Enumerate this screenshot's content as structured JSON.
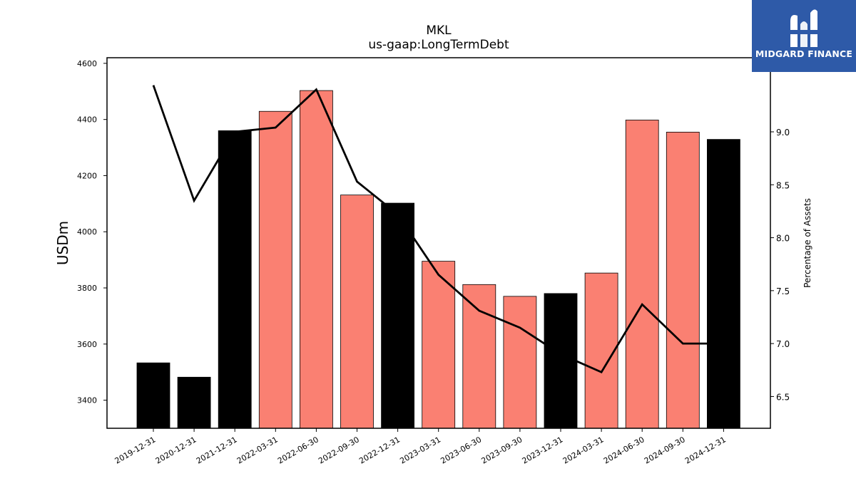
{
  "chart_data": {
    "type": "bar",
    "title": "MKL",
    "subtitle": "us-gaap:LongTermDebt",
    "ylabel": "USDm",
    "y2label": "Percentage of Assets",
    "categories": [
      "2019-12-31",
      "2020-12-31",
      "2021-12-31",
      "2022-03-31",
      "2022-06-30",
      "2022-09-30",
      "2022-12-31",
      "2023-03-31",
      "2023-06-30",
      "2023-09-30",
      "2023-12-31",
      "2024-03-31",
      "2024-06-30",
      "2024-09-30",
      "2024-12-31"
    ],
    "values": [
      3533,
      3482,
      4360,
      4429,
      4503,
      4131,
      4102,
      3895,
      3812,
      3770,
      3780,
      3853,
      4398,
      4355,
      4329
    ],
    "bar_colors": [
      "#000000",
      "#000000",
      "#000000",
      "#fa8072",
      "#fa8072",
      "#fa8072",
      "#000000",
      "#fa8072",
      "#fa8072",
      "#fa8072",
      "#000000",
      "#fa8072",
      "#fa8072",
      "#fa8072",
      "#000000"
    ],
    "line_series": {
      "name": "Percentage of Assets",
      "values": [
        9.44,
        8.35,
        9.0,
        9.04,
        9.4,
        8.53,
        8.22,
        7.65,
        7.31,
        7.15,
        6.9,
        6.73,
        7.37,
        7.0,
        7.0
      ],
      "color": "#000000"
    },
    "ylim": [
      3300,
      4620
    ],
    "y2lim": [
      6.2,
      9.7
    ],
    "yticks": [
      3400,
      3600,
      3800,
      4000,
      4200,
      4400,
      4600
    ],
    "y2ticks": [
      "6.5",
      "7.0",
      "7.5",
      "8.0",
      "8.5",
      "9.0"
    ],
    "grid": false
  },
  "logo": {
    "text": "MIDGARD FINANCE",
    "background": "#2e5aa8"
  }
}
